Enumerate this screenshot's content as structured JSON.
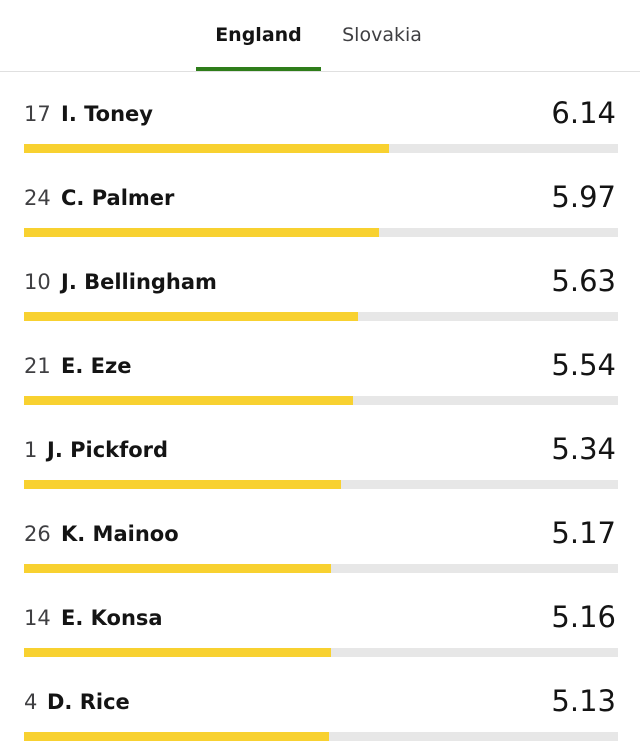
{
  "tabs": [
    {
      "label": "England",
      "active": true
    },
    {
      "label": "Slovakia",
      "active": false
    }
  ],
  "colors": {
    "accent": "#2e7d1a",
    "bar_fill": "#f8d130",
    "bar_track": "#e7e7e7"
  },
  "rating_scale_max": 10,
  "players": [
    {
      "number": "17",
      "name": "I. Toney",
      "rating": "6.14",
      "value": 6.14
    },
    {
      "number": "24",
      "name": "C. Palmer",
      "rating": "5.97",
      "value": 5.97
    },
    {
      "number": "10",
      "name": "J. Bellingham",
      "rating": "5.63",
      "value": 5.63
    },
    {
      "number": "21",
      "name": "E. Eze",
      "rating": "5.54",
      "value": 5.54
    },
    {
      "number": "1",
      "name": "J. Pickford",
      "rating": "5.34",
      "value": 5.34
    },
    {
      "number": "26",
      "name": "K. Mainoo",
      "rating": "5.17",
      "value": 5.17
    },
    {
      "number": "14",
      "name": "E. Konsa",
      "rating": "5.16",
      "value": 5.16
    },
    {
      "number": "4",
      "name": "D. Rice",
      "rating": "5.13",
      "value": 5.13
    }
  ]
}
